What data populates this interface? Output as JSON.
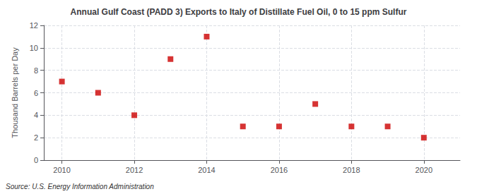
{
  "chart_data": {
    "type": "scatter",
    "title": "Annual Gulf Coast (PADD 3) Exports to Italy of Distillate Fuel Oil, 0 to 15 ppm Sulfur",
    "ylabel": "Thousand Barrels per Day",
    "source": "Source: U.S. Energy Information Administration",
    "x": [
      2010,
      2011,
      2012,
      2013,
      2014,
      2015,
      2016,
      2017,
      2018,
      2019,
      2020
    ],
    "values": [
      7.0,
      6.0,
      4.0,
      9.0,
      11.0,
      3.0,
      3.0,
      5.0,
      3.0,
      3.0,
      2.0
    ],
    "color": "#cc0000",
    "marker": "square",
    "xlim": [
      2009.5,
      2021.0
    ],
    "ylim": [
      0,
      12
    ],
    "xticks": [
      2010,
      2012,
      2014,
      2016,
      2018,
      2020
    ],
    "yticks": [
      0,
      2,
      4,
      6,
      8,
      10,
      12
    ],
    "grid": true
  }
}
